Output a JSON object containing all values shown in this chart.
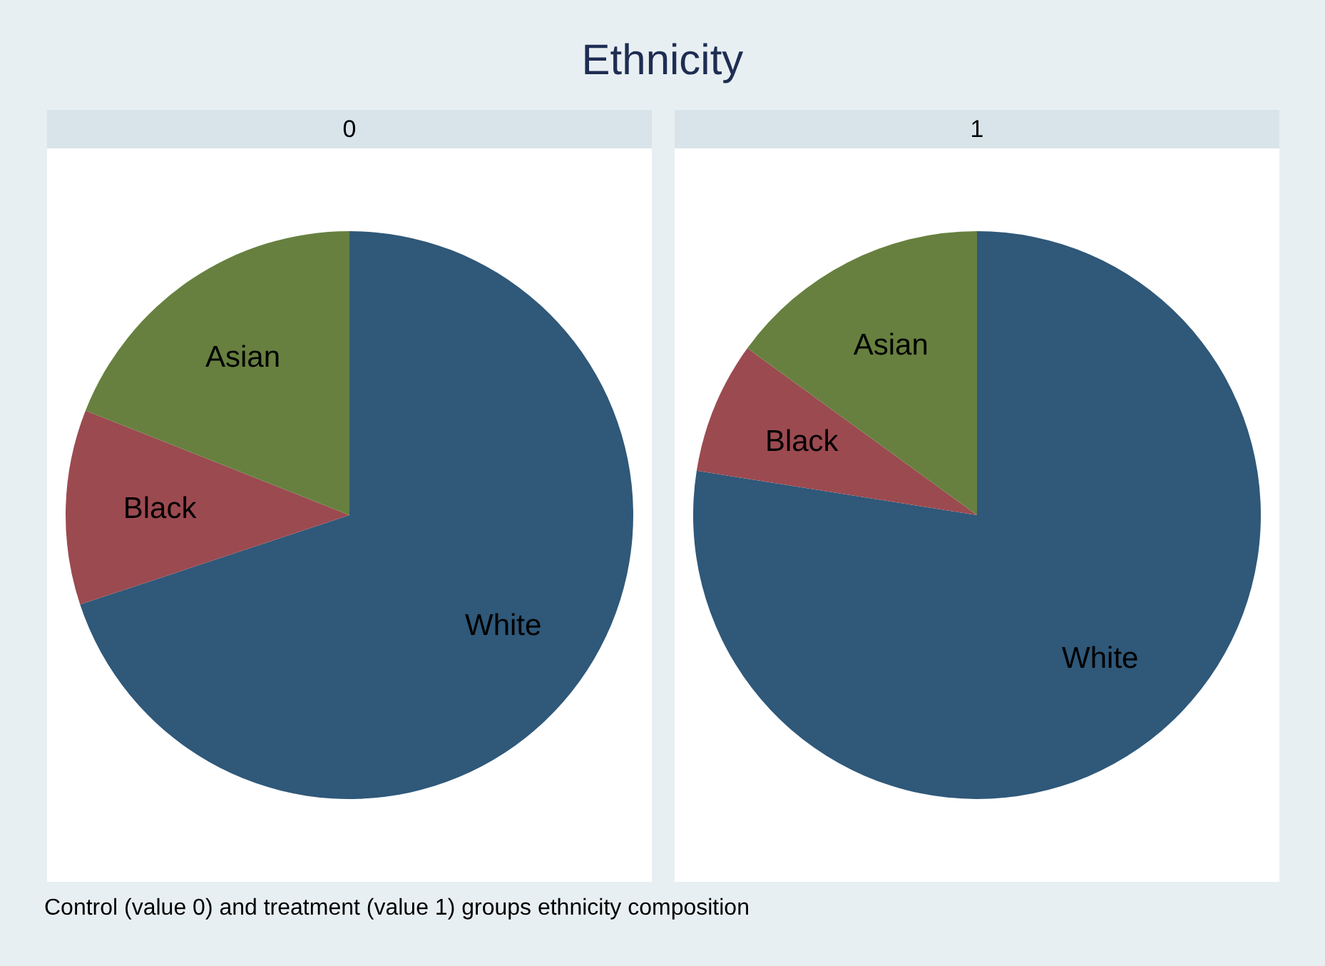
{
  "chart_data": {
    "type": "pie",
    "title": "Ethnicity",
    "categories": [
      "White",
      "Black",
      "Asian"
    ],
    "colors": [
      "#2f5879",
      "#9b4a50",
      "#67803f"
    ],
    "series": [
      {
        "name": "0",
        "values": [
          69.9,
          11.1,
          19.0
        ]
      },
      {
        "name": "1",
        "values": [
          77.5,
          7.5,
          15.0
        ]
      }
    ],
    "annotations": [
      "Control (value 0) and treatment (value 1) groups ethnicity composition"
    ]
  }
}
